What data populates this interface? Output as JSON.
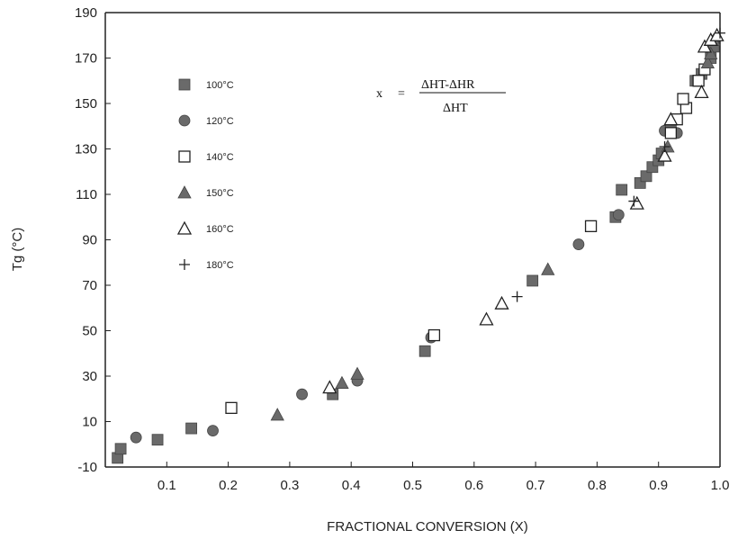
{
  "chart_data": {
    "type": "scatter",
    "xlabel": "FRACTIONAL CONVERSION (X)",
    "ylabel": "Tg (°C)",
    "xlim": [
      0,
      1.0
    ],
    "ylim": [
      -10,
      190
    ],
    "xticks": [
      "0.1",
      "0.2",
      "0.3",
      "0.4",
      "0.5",
      "0.6",
      "0.7",
      "0.8",
      "0.9",
      "1.0"
    ],
    "yticks": [
      "-10",
      "10",
      "30",
      "50",
      "70",
      "90",
      "110",
      "130",
      "150",
      "170",
      "190"
    ],
    "legend_position": "top-left",
    "annotation": {
      "lhs": "x",
      "equals": "=",
      "numerator": "ΔHT-ΔHR",
      "denominator": "ΔHT"
    },
    "series": [
      {
        "name": "100°C",
        "marker": "filled-square",
        "color": "#6a6a6a",
        "points": [
          [
            0.02,
            -6
          ],
          [
            0.025,
            -2
          ],
          [
            0.085,
            2
          ],
          [
            0.14,
            7
          ],
          [
            0.37,
            22
          ],
          [
            0.52,
            41
          ],
          [
            0.695,
            72
          ],
          [
            0.83,
            100
          ],
          [
            0.84,
            112
          ],
          [
            0.87,
            115
          ],
          [
            0.88,
            118
          ],
          [
            0.89,
            122
          ],
          [
            0.9,
            125
          ],
          [
            0.905,
            128
          ],
          [
            0.96,
            160
          ],
          [
            0.97,
            163
          ],
          [
            0.985,
            170
          ],
          [
            0.99,
            175
          ]
        ]
      },
      {
        "name": "120°C",
        "marker": "filled-circle",
        "color": "#6a6a6a",
        "points": [
          [
            0.05,
            3
          ],
          [
            0.175,
            6
          ],
          [
            0.32,
            22
          ],
          [
            0.41,
            28
          ],
          [
            0.53,
            47
          ],
          [
            0.77,
            88
          ],
          [
            0.835,
            101
          ],
          [
            0.91,
            138
          ],
          [
            0.92,
            140
          ],
          [
            0.93,
            137
          ]
        ]
      },
      {
        "name": "140°C",
        "marker": "open-square",
        "color": "#222222",
        "points": [
          [
            0.205,
            16
          ],
          [
            0.535,
            48
          ],
          [
            0.79,
            96
          ],
          [
            0.92,
            137
          ],
          [
            0.93,
            143
          ],
          [
            0.945,
            148
          ],
          [
            0.94,
            152
          ],
          [
            0.965,
            160
          ],
          [
            0.975,
            165
          ]
        ]
      },
      {
        "name": "150°C",
        "marker": "filled-triangle",
        "color": "#6a6a6a",
        "points": [
          [
            0.28,
            13
          ],
          [
            0.385,
            27
          ],
          [
            0.41,
            31
          ],
          [
            0.72,
            77
          ],
          [
            0.915,
            131
          ],
          [
            0.98,
            168
          ],
          [
            0.985,
            172
          ],
          [
            0.99,
            178
          ]
        ]
      },
      {
        "name": "160°C",
        "marker": "open-triangle",
        "color": "#222222",
        "points": [
          [
            0.365,
            25
          ],
          [
            0.62,
            55
          ],
          [
            0.645,
            62
          ],
          [
            0.865,
            106
          ],
          [
            0.91,
            127
          ],
          [
            0.92,
            143
          ],
          [
            0.97,
            155
          ],
          [
            0.975,
            175
          ],
          [
            0.985,
            178
          ],
          [
            0.995,
            180
          ]
        ]
      },
      {
        "name": "180°C",
        "marker": "plus",
        "color": "#222222",
        "points": [
          [
            0.67,
            65
          ],
          [
            0.86,
            107
          ],
          [
            0.91,
            131
          ],
          [
            1.0,
            181
          ]
        ]
      }
    ]
  }
}
